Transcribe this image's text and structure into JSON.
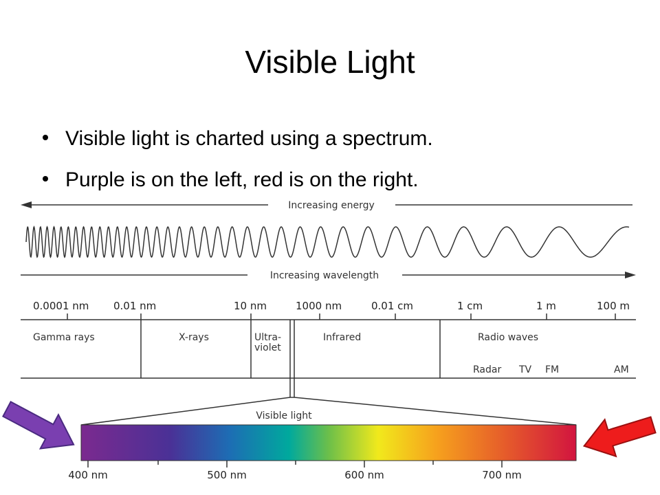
{
  "title": "Visible Light",
  "bullets": [
    "Visible light is charted using a spectrum.",
    "Purple is on the left, red is on the right."
  ],
  "diagram": {
    "energy_label": "Increasing energy",
    "wavelength_label": "Increasing wavelength",
    "scale": [
      "0.0001 nm",
      "0.01 nm",
      "10 nm",
      "1000 nm",
      "0.01 cm",
      "1 cm",
      "1 m",
      "100 m"
    ],
    "regions": [
      "Gamma rays",
      "X-rays",
      "Infrared",
      "Radio waves"
    ],
    "ultraviolet_lines": [
      "Ultra-",
      "violet"
    ],
    "radio_bands": [
      "Radar",
      "TV",
      "FM",
      "AM"
    ],
    "visible_label": "Visible light",
    "visible_scale": [
      "400 nm",
      "500 nm",
      "600 nm",
      "700 nm"
    ]
  }
}
